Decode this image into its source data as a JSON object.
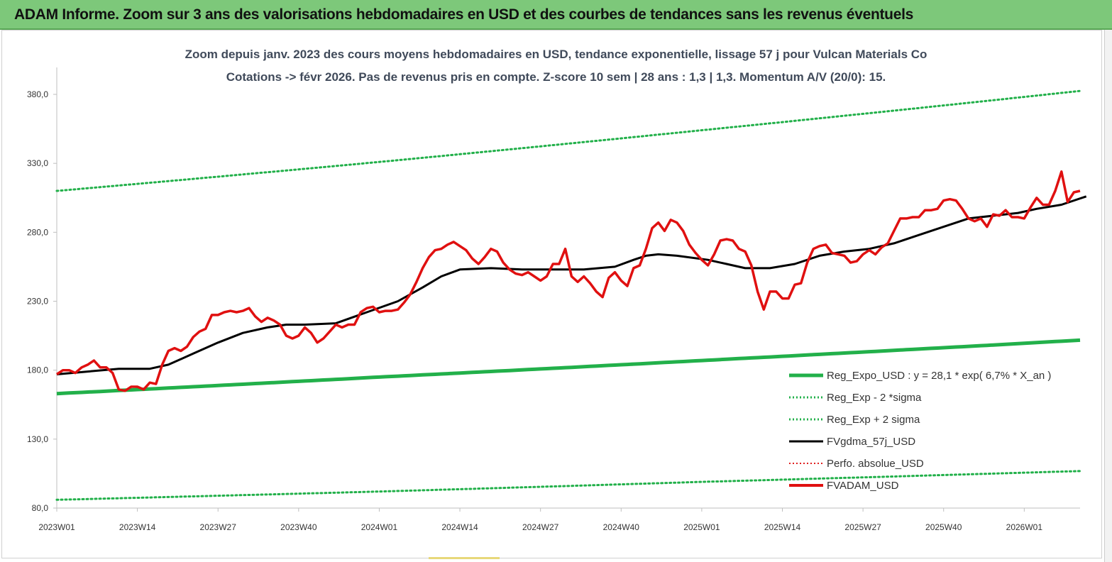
{
  "banner": {
    "title": "ADAM Informe. Zoom sur 3 ans des valorisations hebdomadaires en USD et des courbes de tendances sans les revenus éventuels"
  },
  "chart_data": {
    "type": "line",
    "title": "Zoom depuis janv. 2023 des cours moyens hebdomadaires en USD, tendance exponentielle, lissage 57 j pour Vulcan Materials Co",
    "subtitle": "Cotations -> févr 2026.  Pas de revenus pris en compte. Z-score 10 sem  | 28 ans : 1,3  | 1,3. Momentum A/V (20/0): 15.",
    "xlabel": "",
    "ylabel": "",
    "ylim": [
      80,
      390
    ],
    "yticks": [
      "80,0",
      "130,0",
      "180,0",
      "230,0",
      "280,0",
      "330,0",
      "380,0"
    ],
    "yticks_values": [
      80,
      130,
      180,
      230,
      280,
      330,
      380
    ],
    "xticks": [
      "2023W01",
      "2023W14",
      "2023W27",
      "2023W40",
      "2024W01",
      "2024W14",
      "2024W27",
      "2024W40",
      "2025W01",
      "2025W14",
      "2025W27",
      "2025W40",
      "2026W01"
    ],
    "xticks_index": [
      0,
      13,
      26,
      39,
      52,
      65,
      78,
      91,
      104,
      117,
      130,
      143,
      156
    ],
    "n_weeks": 166,
    "grid": false,
    "legend_position": "bottom-right",
    "colors": {
      "reg": "#22b04a",
      "sigma": "#22b04a",
      "fvgdma": "#000000",
      "perfo": "#e02020",
      "fvadam": "#e01010"
    },
    "legend": [
      {
        "label": "Reg_Expo_USD : y = 28,1 * exp( 6,7% *  X_an )",
        "style": "thick",
        "color": "#22b04a"
      },
      {
        "label": "Reg_Exp - 2 *sigma",
        "style": "dotted",
        "color": "#22b04a"
      },
      {
        "label": "Reg_Exp + 2 sigma",
        "style": "dotted",
        "color": "#22b04a"
      },
      {
        "label": "FVgdma_57j_USD",
        "style": "solid",
        "color": "#000000"
      },
      {
        "label": "Perfo. absolue_USD",
        "style": "dotted",
        "color": "#e02020"
      },
      {
        "label": "FVADAM_USD",
        "style": "thick",
        "color": "#e01010"
      }
    ],
    "series": [
      {
        "name": "Reg_Expo_USD : y = 28,1 * exp( 6,7% *  X_an )",
        "points": [
          [
            0,
            163
          ],
          [
            52,
            175
          ],
          [
            104,
            187
          ],
          [
            166,
            202
          ]
        ]
      },
      {
        "name": "Reg_Exp - 2 *sigma",
        "points": [
          [
            0,
            86
          ],
          [
            52,
            92
          ],
          [
            104,
            99
          ],
          [
            166,
            107
          ]
        ]
      },
      {
        "name": "Reg_Exp + 2 sigma",
        "points": [
          [
            0,
            310
          ],
          [
            52,
            331
          ],
          [
            104,
            354
          ],
          [
            166,
            383
          ]
        ]
      },
      {
        "name": "FVgdma_57j_USD",
        "points": [
          [
            0,
            177
          ],
          [
            5,
            179
          ],
          [
            10,
            181
          ],
          [
            15,
            181
          ],
          [
            18,
            184
          ],
          [
            22,
            192
          ],
          [
            26,
            200
          ],
          [
            30,
            207
          ],
          [
            34,
            211
          ],
          [
            37,
            213
          ],
          [
            40,
            213
          ],
          [
            45,
            214
          ],
          [
            50,
            222
          ],
          [
            55,
            230
          ],
          [
            59,
            240
          ],
          [
            62,
            248
          ],
          [
            65,
            253
          ],
          [
            70,
            254
          ],
          [
            75,
            253
          ],
          [
            80,
            253
          ],
          [
            85,
            253
          ],
          [
            90,
            255
          ],
          [
            93,
            260
          ],
          [
            95,
            263
          ],
          [
            97,
            264
          ],
          [
            100,
            263
          ],
          [
            105,
            260
          ],
          [
            108,
            257
          ],
          [
            111,
            254
          ],
          [
            115,
            254
          ],
          [
            119,
            257
          ],
          [
            123,
            263
          ],
          [
            127,
            266
          ],
          [
            131,
            268
          ],
          [
            135,
            272
          ],
          [
            139,
            278
          ],
          [
            143,
            284
          ],
          [
            147,
            290
          ],
          [
            151,
            292
          ],
          [
            155,
            294
          ],
          [
            158,
            297
          ],
          [
            162,
            300
          ],
          [
            166,
            306
          ]
        ]
      },
      {
        "name": "FVADAM_USD",
        "points": [
          [
            0,
            177
          ],
          [
            1,
            180
          ],
          [
            2,
            180
          ],
          [
            3,
            178
          ],
          [
            4,
            182
          ],
          [
            5,
            184
          ],
          [
            6,
            187
          ],
          [
            7,
            182
          ],
          [
            8,
            182
          ],
          [
            9,
            178
          ],
          [
            10,
            166
          ],
          [
            11,
            165
          ],
          [
            12,
            168
          ],
          [
            13,
            168
          ],
          [
            14,
            166
          ],
          [
            15,
            171
          ],
          [
            16,
            170
          ],
          [
            17,
            184
          ],
          [
            18,
            194
          ],
          [
            19,
            196
          ],
          [
            20,
            194
          ],
          [
            21,
            197
          ],
          [
            22,
            204
          ],
          [
            23,
            208
          ],
          [
            24,
            210
          ],
          [
            25,
            220
          ],
          [
            26,
            220
          ],
          [
            27,
            222
          ],
          [
            28,
            223
          ],
          [
            29,
            222
          ],
          [
            30,
            223
          ],
          [
            31,
            225
          ],
          [
            32,
            219
          ],
          [
            33,
            215
          ],
          [
            34,
            218
          ],
          [
            35,
            216
          ],
          [
            36,
            213
          ],
          [
            37,
            205
          ],
          [
            38,
            203
          ],
          [
            39,
            205
          ],
          [
            40,
            211
          ],
          [
            41,
            207
          ],
          [
            42,
            200
          ],
          [
            43,
            203
          ],
          [
            44,
            208
          ],
          [
            45,
            213
          ],
          [
            46,
            211
          ],
          [
            47,
            213
          ],
          [
            48,
            213
          ],
          [
            49,
            222
          ],
          [
            50,
            225
          ],
          [
            51,
            226
          ],
          [
            52,
            222
          ],
          [
            53,
            223
          ],
          [
            54,
            223
          ],
          [
            55,
            224
          ],
          [
            56,
            229
          ],
          [
            57,
            235
          ],
          [
            58,
            244
          ],
          [
            59,
            254
          ],
          [
            60,
            262
          ],
          [
            61,
            267
          ],
          [
            62,
            268
          ],
          [
            63,
            271
          ],
          [
            64,
            273
          ],
          [
            65,
            270
          ],
          [
            66,
            267
          ],
          [
            67,
            261
          ],
          [
            68,
            257
          ],
          [
            69,
            262
          ],
          [
            70,
            268
          ],
          [
            71,
            266
          ],
          [
            72,
            258
          ],
          [
            73,
            253
          ],
          [
            74,
            250
          ],
          [
            75,
            249
          ],
          [
            76,
            251
          ],
          [
            77,
            248
          ],
          [
            78,
            245
          ],
          [
            79,
            248
          ],
          [
            80,
            257
          ],
          [
            81,
            257
          ],
          [
            82,
            268
          ],
          [
            83,
            248
          ],
          [
            84,
            244
          ],
          [
            85,
            248
          ],
          [
            86,
            243
          ],
          [
            87,
            237
          ],
          [
            88,
            233
          ],
          [
            89,
            247
          ],
          [
            90,
            251
          ],
          [
            91,
            245
          ],
          [
            92,
            241
          ],
          [
            93,
            254
          ],
          [
            94,
            256
          ],
          [
            95,
            268
          ],
          [
            96,
            283
          ],
          [
            97,
            287
          ],
          [
            98,
            281
          ],
          [
            99,
            289
          ],
          [
            100,
            287
          ],
          [
            101,
            281
          ],
          [
            102,
            271
          ],
          [
            103,
            265
          ],
          [
            104,
            260
          ],
          [
            105,
            256
          ],
          [
            106,
            264
          ],
          [
            107,
            274
          ],
          [
            108,
            275
          ],
          [
            109,
            274
          ],
          [
            110,
            268
          ],
          [
            111,
            266
          ],
          [
            112,
            256
          ],
          [
            113,
            237
          ],
          [
            114,
            224
          ],
          [
            115,
            237
          ],
          [
            116,
            237
          ],
          [
            117,
            232
          ],
          [
            118,
            232
          ],
          [
            119,
            242
          ],
          [
            120,
            243
          ],
          [
            121,
            258
          ],
          [
            122,
            268
          ],
          [
            123,
            270
          ],
          [
            124,
            271
          ],
          [
            125,
            265
          ],
          [
            126,
            264
          ],
          [
            127,
            263
          ],
          [
            128,
            258
          ],
          [
            129,
            259
          ],
          [
            130,
            264
          ],
          [
            131,
            267
          ],
          [
            132,
            264
          ],
          [
            133,
            269
          ],
          [
            134,
            272
          ],
          [
            135,
            281
          ],
          [
            136,
            290
          ],
          [
            137,
            290
          ],
          [
            138,
            291
          ],
          [
            139,
            291
          ],
          [
            140,
            296
          ],
          [
            141,
            296
          ],
          [
            142,
            297
          ],
          [
            143,
            303
          ],
          [
            144,
            304
          ],
          [
            145,
            303
          ],
          [
            146,
            297
          ],
          [
            147,
            290
          ],
          [
            148,
            288
          ],
          [
            149,
            290
          ],
          [
            150,
            284
          ],
          [
            151,
            293
          ],
          [
            152,
            292
          ],
          [
            153,
            296
          ],
          [
            154,
            291
          ],
          [
            155,
            291
          ],
          [
            156,
            290
          ],
          [
            157,
            298
          ],
          [
            158,
            305
          ],
          [
            159,
            300
          ],
          [
            160,
            300
          ],
          [
            161,
            310
          ],
          [
            162,
            324
          ],
          [
            163,
            302
          ],
          [
            164,
            309
          ],
          [
            165,
            310
          ]
        ]
      }
    ]
  }
}
